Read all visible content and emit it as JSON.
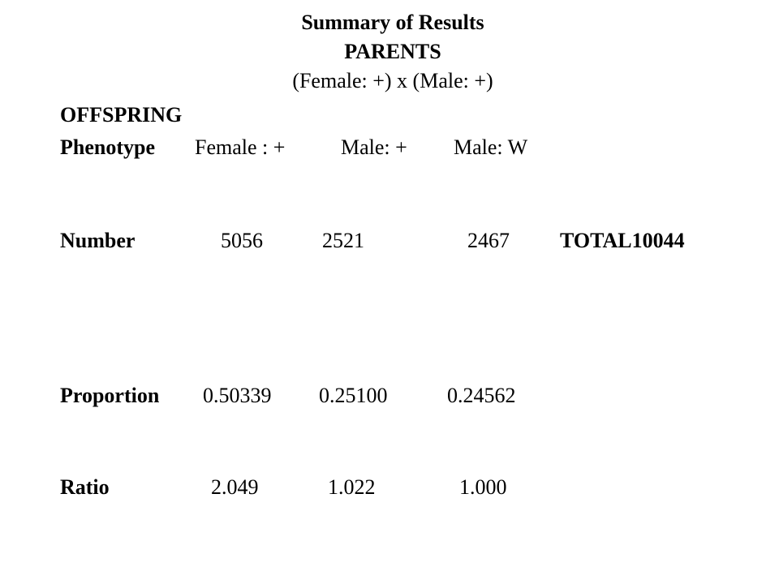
{
  "header": {
    "title": "Summary of Results",
    "parents_heading": "PARENTS",
    "cross": "(Female: +) x (Male: +)"
  },
  "section": "OFFSPRING",
  "table": {
    "header": [
      "Phenotype",
      "Female : +",
      "Male: +",
      "Male: W"
    ],
    "rows": [
      [
        "Number",
        "5056",
        "2521",
        "2467"
      ],
      [
        "Proportion",
        "0.50339",
        "0.25100",
        "0.24562"
      ],
      [
        "Ratio",
        "2.049",
        "1.022",
        "1.000"
      ]
    ],
    "total_label": "TOTAL",
    "total_value": "10044"
  }
}
